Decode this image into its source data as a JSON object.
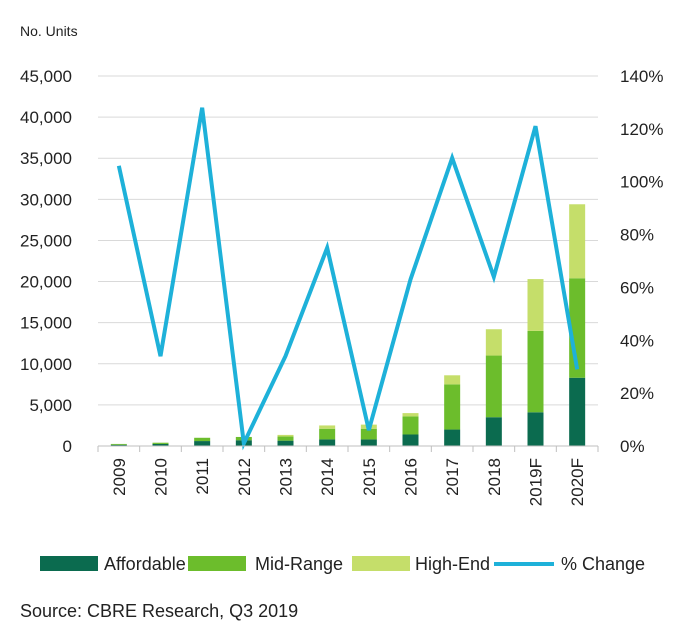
{
  "chart_data": {
    "type": "bar",
    "stacked": true,
    "categories": [
      "2009",
      "2010",
      "2011",
      "2012",
      "2013",
      "2014",
      "2015",
      "2016",
      "2017",
      "2018",
      "2019F",
      "2020F"
    ],
    "series": [
      {
        "name": "Affordable",
        "color": "#0b6b4f",
        "values": [
          150,
          250,
          600,
          700,
          650,
          800,
          800,
          1400,
          2000,
          3500,
          4100,
          8300
        ]
      },
      {
        "name": "Mid-Range",
        "color": "#6cbd2c",
        "values": [
          100,
          150,
          400,
          400,
          500,
          1300,
          1300,
          2200,
          5500,
          7500,
          9900,
          12100
        ]
      },
      {
        "name": "High-End",
        "color": "#c5de6a",
        "values": [
          0,
          0,
          0,
          0,
          200,
          400,
          500,
          400,
          1100,
          3200,
          6300,
          9000
        ]
      }
    ],
    "line_series": {
      "name": "% Change",
      "color": "#1eb1d9",
      "axis": "right",
      "values": [
        106,
        34,
        128,
        1,
        34,
        75,
        6,
        63,
        109,
        64,
        121,
        29
      ]
    },
    "ylabel": "No. Units",
    "ylim": [
      0,
      45000
    ],
    "y_ticks": [
      "0",
      "5,000",
      "10,000",
      "15,000",
      "20,000",
      "25,000",
      "30,000",
      "35,000",
      "40,000",
      "45,000"
    ],
    "y2lim": [
      0,
      140
    ],
    "y2_ticks": [
      "0%",
      "20%",
      "40%",
      "60%",
      "80%",
      "100%",
      "120%",
      "140%"
    ],
    "grid": true,
    "legend_position": "bottom",
    "source": "Source: CBRE Research, Q3 2019"
  }
}
